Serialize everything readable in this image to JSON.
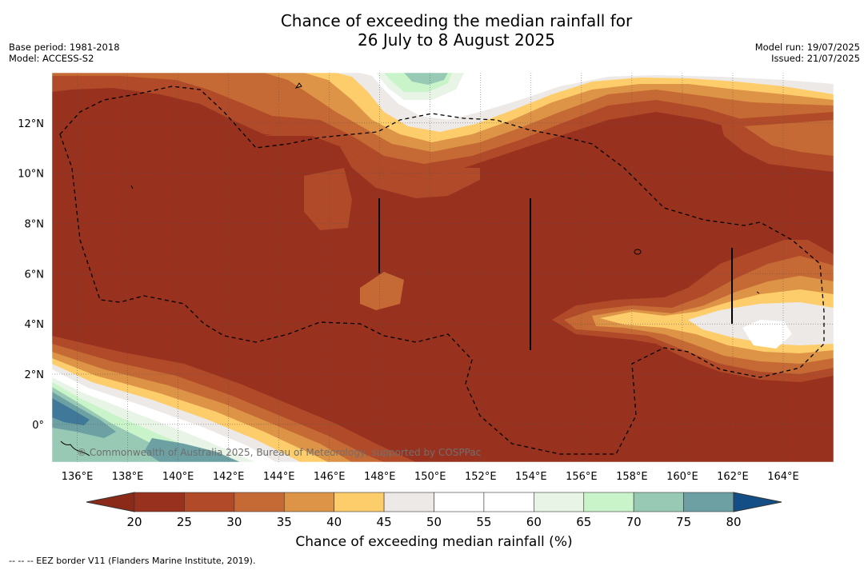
{
  "title": {
    "line1": "Chance of exceeding the median rainfall for",
    "line2": "26 July to 8 August 2025"
  },
  "meta_left": {
    "base_period": "Base period: 1981-2018",
    "model": "Model: ACCESS-S2"
  },
  "meta_right": {
    "model_run": "Model run: 19/07/2025",
    "issued": "Issued: 21/07/2025"
  },
  "map": {
    "lat_labels": [
      "12°N",
      "10°N",
      "8°N",
      "6°N",
      "4°N",
      "2°N",
      "0°"
    ],
    "lon_labels": [
      "136°E",
      "138°E",
      "140°E",
      "142°E",
      "144°E",
      "146°E",
      "148°E",
      "150°E",
      "152°E",
      "154°E",
      "156°E",
      "158°E",
      "160°E",
      "162°E",
      "164°E"
    ],
    "lat_range": [
      -1.5,
      14
    ],
    "lon_range": [
      135,
      166
    ],
    "copyright": "© Commonwealth of Australia 2025, Bureau of Meteorology, supported by COSPPac",
    "border_style": "dashed"
  },
  "colorbar": {
    "ticks": [
      "20",
      "25",
      "30",
      "35",
      "40",
      "45",
      "50",
      "55",
      "60",
      "65",
      "70",
      "75",
      "80"
    ],
    "colors": [
      "#99311f",
      "#b04a28",
      "#c66a35",
      "#dd9447",
      "#fdcd6b",
      "#ede9e6",
      "#ffffff",
      "#ffffff",
      "#e8f4e6",
      "#c9f4c9",
      "#98c9b4",
      "#6ca0a3",
      "#3f7899"
    ],
    "under_color": "#8c2a1a",
    "over_color": "#134f86",
    "label": "Chance of exceeding median rainfall (%)"
  },
  "footer": {
    "note": "--  --  -- EEZ border V11 (Flanders Marine Institute, 2019)."
  }
}
